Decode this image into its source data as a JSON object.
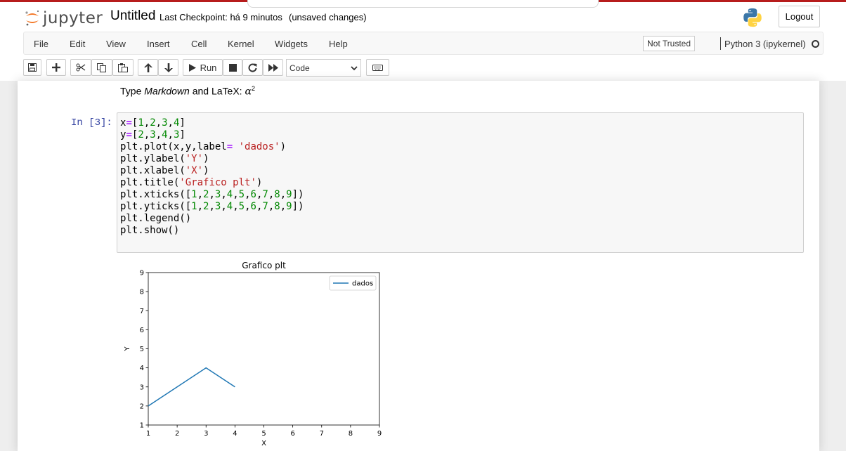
{
  "header": {
    "logo_text": "jupyter",
    "notebook_title": "Untitled",
    "checkpoint": "Last Checkpoint: há 9 minutos",
    "unsaved": "(unsaved changes)",
    "logout_label": "Logout"
  },
  "menu": {
    "items": [
      "File",
      "Edit",
      "View",
      "Insert",
      "Cell",
      "Kernel",
      "Widgets",
      "Help"
    ],
    "trust_label": "Not Trusted",
    "kernel_name": "Python 3 (ipykernel)"
  },
  "toolbar": {
    "run_label": "Run",
    "cell_type": "Code",
    "icons": [
      "save-icon",
      "plus-icon",
      "cut-icon",
      "copy-icon",
      "paste-icon",
      "arrow-up-icon",
      "arrow-down-icon",
      "run-icon",
      "stop-icon",
      "restart-icon",
      "fast-forward-icon",
      "keyboard-icon"
    ]
  },
  "markdown_cell": {
    "prefix": "Type",
    "em": "Markdown",
    "middle": "and LaTeX:",
    "math_base": "α",
    "math_sup": "2"
  },
  "code_cell": {
    "prompt": "In [3]:",
    "lines": [
      "x=[1,2,3,4]",
      "y=[2,3,4,3]",
      "plt.plot(x,y,label= 'dados')",
      "plt.ylabel('Y')",
      "plt.xlabel('X')",
      "plt.title('Grafico plt')",
      "plt.xticks([1,2,3,4,5,6,7,8,9])",
      "plt.yticks([1,2,3,4,5,6,7,8,9])",
      "plt.legend()",
      "plt.show()"
    ]
  },
  "colors": {
    "line": "#1f77b4",
    "accent_bar": "#b71c1c",
    "prompt": "#303f9f"
  },
  "chart_data": {
    "type": "line",
    "title": "Grafico plt",
    "xlabel": "X",
    "ylabel": "Y",
    "xlim": [
      1,
      9
    ],
    "ylim": [
      1,
      9
    ],
    "xticks": [
      1,
      2,
      3,
      4,
      5,
      6,
      7,
      8,
      9
    ],
    "yticks": [
      1,
      2,
      3,
      4,
      5,
      6,
      7,
      8,
      9
    ],
    "legend_position": "top-right",
    "grid": false,
    "series": [
      {
        "name": "dados",
        "x": [
          1,
          2,
          3,
          4
        ],
        "y": [
          2,
          3,
          4,
          3
        ]
      }
    ]
  }
}
